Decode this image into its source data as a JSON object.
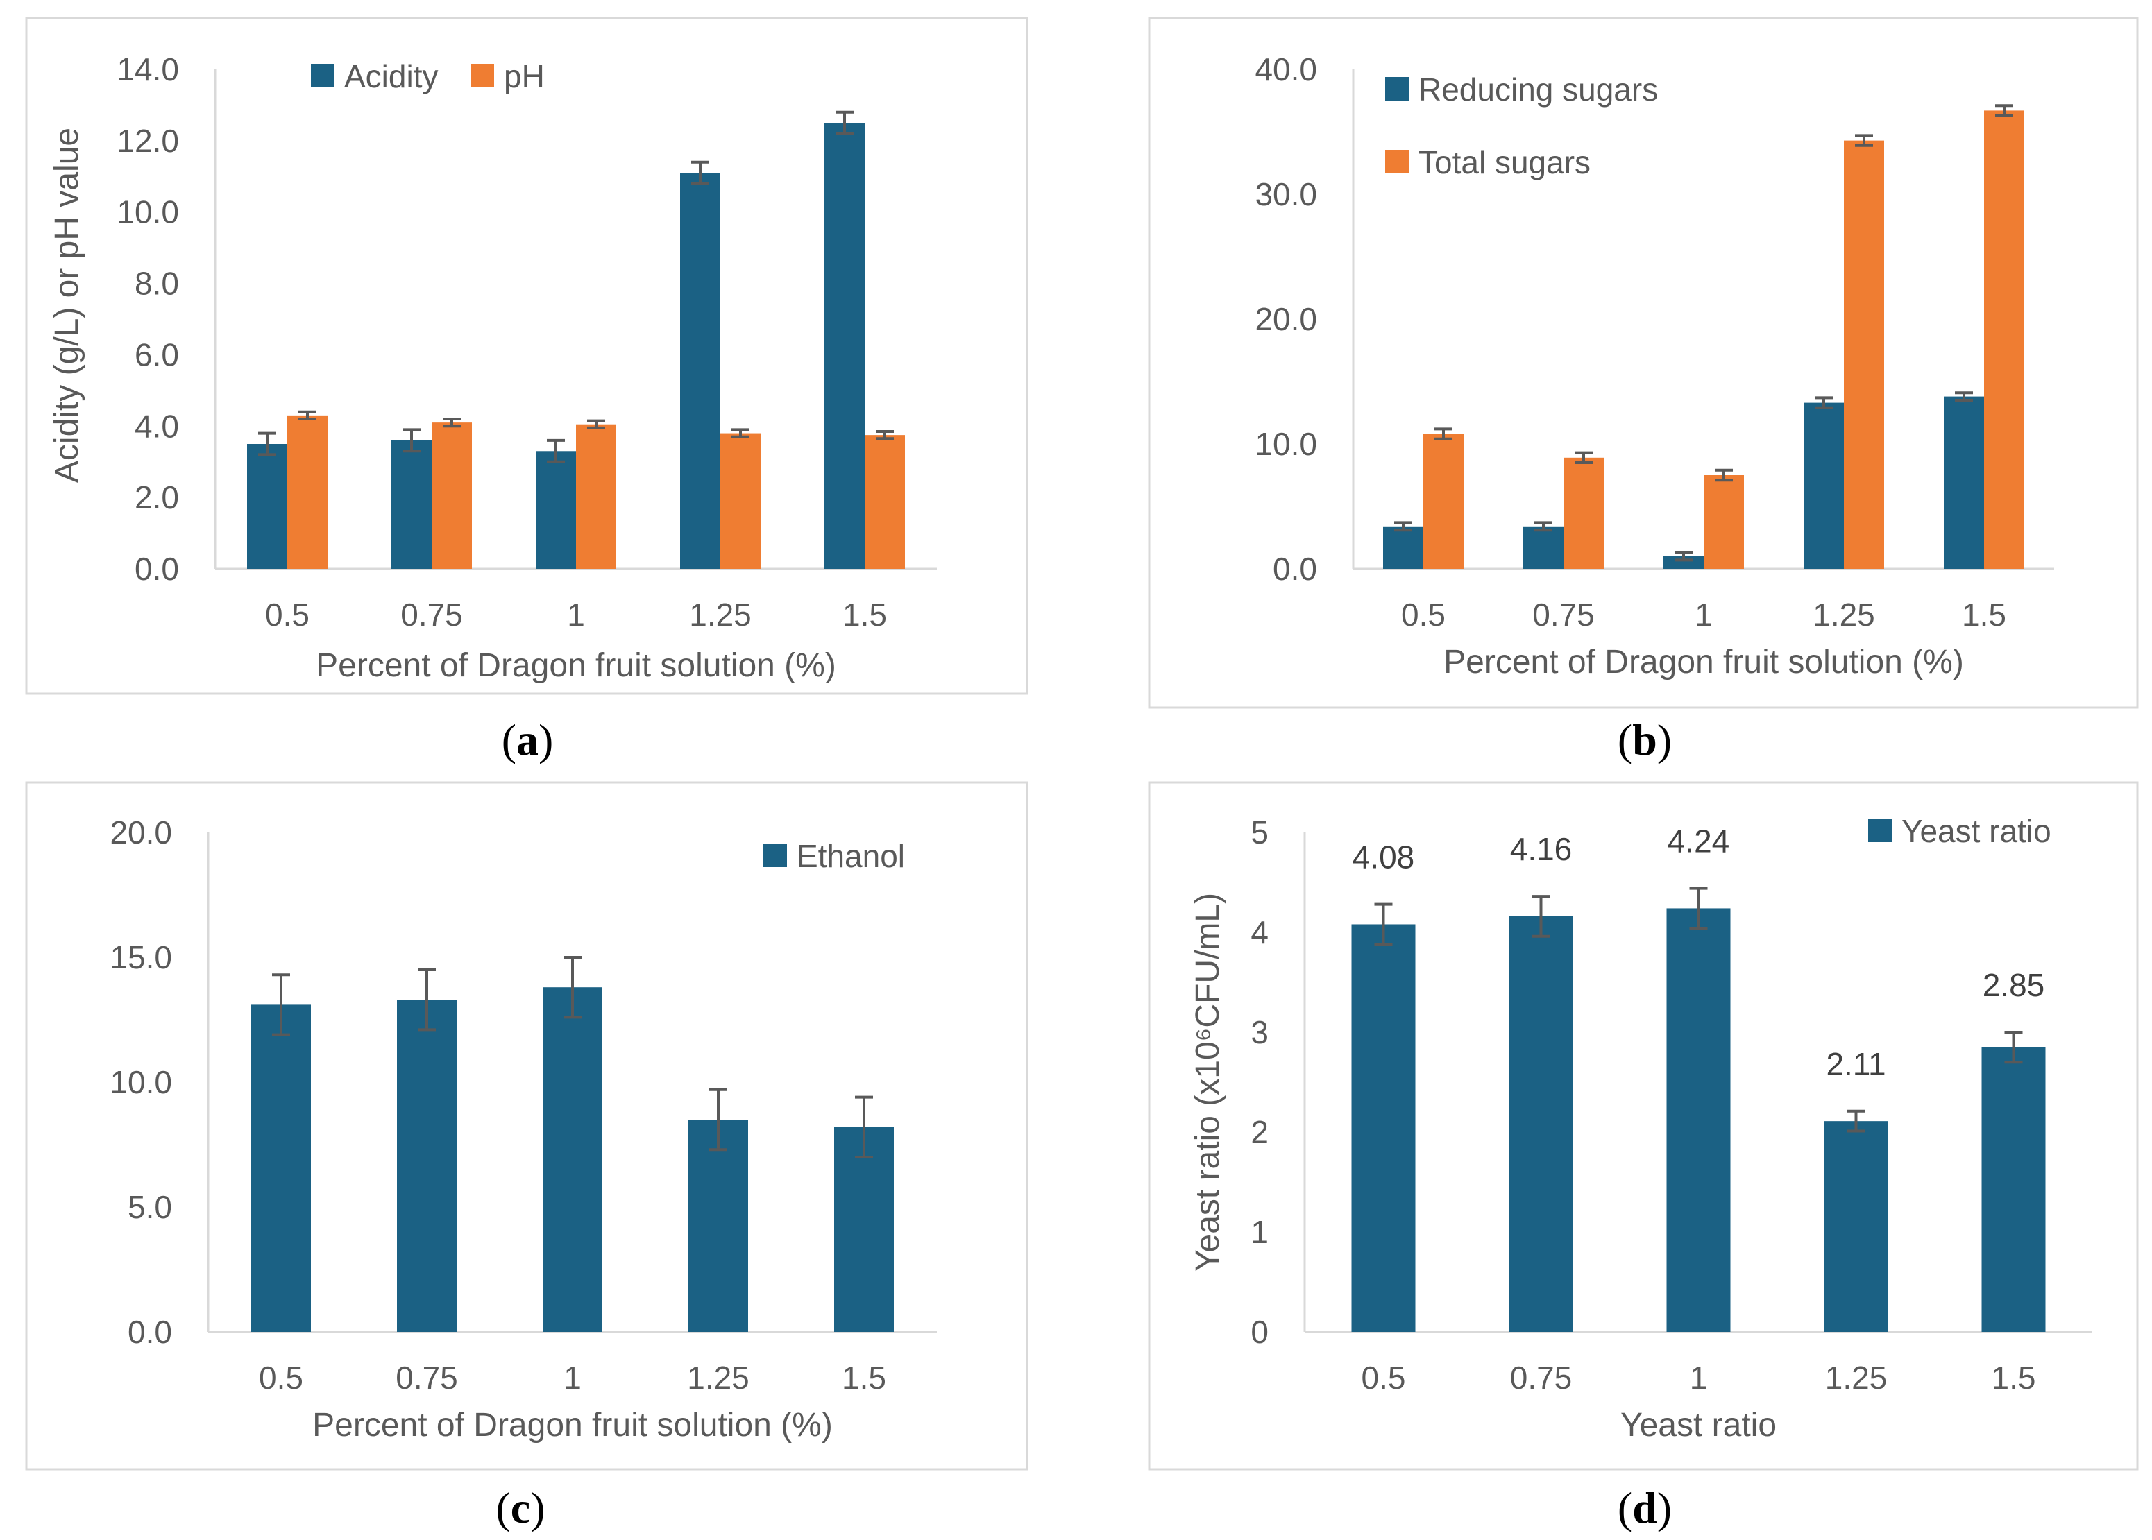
{
  "colors": {
    "blue": "#1b6184",
    "orange": "#ef7d32"
  },
  "chart_data": [
    {
      "id": "a",
      "type": "bar",
      "caption": "a",
      "categories": [
        "0.5",
        "0.75",
        "1",
        "1.25",
        "1.5"
      ],
      "series": [
        {
          "name": "Acidity",
          "color": "#1b6184",
          "values": [
            3.5,
            3.6,
            3.3,
            11.1,
            12.5
          ],
          "errors": [
            0.3,
            0.3,
            0.3,
            0.3,
            0.3
          ]
        },
        {
          "name": "pH",
          "color": "#ef7d32",
          "values": [
            4.3,
            4.1,
            4.05,
            3.8,
            3.75
          ],
          "errors": [
            0.1,
            0.1,
            0.1,
            0.1,
            0.1
          ]
        }
      ],
      "ylim": [
        0,
        14
      ],
      "yticks": [
        "0.0",
        "2.0",
        "4.0",
        "6.0",
        "8.0",
        "10.0",
        "12.0",
        "14.0"
      ],
      "xlabel": "Percent of Dragon fruit solution (%)",
      "ylabel": "Acidity (g/L) or pH value",
      "legend_position": "top-left, horizontal"
    },
    {
      "id": "b",
      "type": "bar",
      "caption": "b",
      "categories": [
        "0.5",
        "0.75",
        "1",
        "1.25",
        "1.5"
      ],
      "series": [
        {
          "name": "Reducing sugars",
          "color": "#1b6184",
          "values": [
            3.4,
            3.4,
            1.0,
            13.3,
            13.8
          ],
          "errors": [
            0.3,
            0.3,
            0.3,
            0.4,
            0.3
          ]
        },
        {
          "name": "Total sugars",
          "color": "#ef7d32",
          "values": [
            10.8,
            8.9,
            7.5,
            34.3,
            36.7
          ],
          "errors": [
            0.4,
            0.4,
            0.4,
            0.4,
            0.4
          ]
        }
      ],
      "ylim": [
        0,
        40
      ],
      "yticks": [
        "0.0",
        "10.0",
        "20.0",
        "30.0",
        "40.0"
      ],
      "xlabel": "Percent of Dragon fruit solution (%)",
      "ylabel": "",
      "legend_position": "top-left, vertical"
    },
    {
      "id": "c",
      "type": "bar",
      "caption": "c",
      "categories": [
        "0.5",
        "0.75",
        "1",
        "1.25",
        "1.5"
      ],
      "series": [
        {
          "name": "Ethanol",
          "color": "#1b6184",
          "values": [
            13.1,
            13.3,
            13.8,
            8.5,
            8.2
          ],
          "errors": [
            1.2,
            1.2,
            1.2,
            1.2,
            1.2
          ]
        }
      ],
      "ylim": [
        0,
        20
      ],
      "yticks": [
        "0.0",
        "5.0",
        "10.0",
        "15.0",
        "20.0"
      ],
      "xlabel": "Percent of Dragon fruit solution (%)",
      "ylabel": "",
      "legend_position": "top-right"
    },
    {
      "id": "d",
      "type": "bar",
      "caption": "d",
      "categories": [
        "0.5",
        "0.75",
        "1",
        "1.25",
        "1.5"
      ],
      "series": [
        {
          "name": "Yeast ratio",
          "color": "#1b6184",
          "values": [
            4.08,
            4.16,
            4.24,
            2.11,
            2.85
          ],
          "errors": [
            0.2,
            0.2,
            0.2,
            0.1,
            0.15
          ],
          "labels": [
            "4.08",
            "4.16",
            "4.24",
            "2.11",
            "2.85"
          ]
        }
      ],
      "ylim": [
        0,
        5
      ],
      "yticks": [
        "0",
        "1",
        "2",
        "3",
        "4",
        "5"
      ],
      "xlabel": "Yeast ratio",
      "ylabel": "Yeast ratio (x10⁶CFU/mL)",
      "legend_position": "top-right"
    }
  ]
}
